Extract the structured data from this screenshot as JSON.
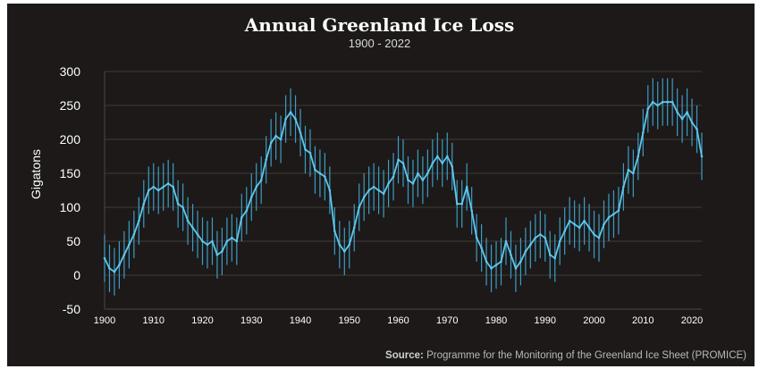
{
  "title": "Annual Greenland Ice Loss",
  "subtitle": "1900 - 2022",
  "source_label": "Source:",
  "source_text": "Programme for the Monitoring of the Greenland Ice Sheet (PROMICE)",
  "colors": {
    "background": "#1c1918",
    "line": "#5ec8ee",
    "error_bar": "#3e9cc4",
    "text": "#ffffff",
    "grid": "#4a4644"
  },
  "chart_data": {
    "type": "line",
    "title": "Annual Greenland Ice Loss",
    "subtitle": "1900 - 2022",
    "ylabel": "Gigatons",
    "xlabel": "",
    "xlim": [
      1900,
      2022
    ],
    "ylim": [
      -50,
      300
    ],
    "yticks": [
      300,
      250,
      200,
      150,
      100,
      50,
      0,
      -50
    ],
    "xticks": [
      1900,
      1910,
      1920,
      1930,
      1940,
      1950,
      1960,
      1970,
      1980,
      1990,
      2000,
      2010,
      2020
    ],
    "grid": true,
    "error_bar_halfwidth": 35,
    "series": [
      {
        "x": [
          1900,
          1901,
          1902,
          1903,
          1904,
          1905,
          1906,
          1907,
          1908,
          1909,
          1910,
          1911,
          1912,
          1913,
          1914,
          1915,
          1916,
          1917,
          1918,
          1919,
          1920,
          1921,
          1922,
          1923,
          1924,
          1925,
          1926,
          1927,
          1928,
          1929,
          1930,
          1931,
          1932,
          1933,
          1934,
          1935,
          1936,
          1937,
          1938,
          1939,
          1940,
          1941,
          1942,
          1943,
          1944,
          1945,
          1946,
          1947,
          1948,
          1949,
          1950,
          1951,
          1952,
          1953,
          1954,
          1955,
          1956,
          1957,
          1958,
          1959,
          1960,
          1961,
          1962,
          1963,
          1964,
          1965,
          1966,
          1967,
          1968,
          1969,
          1970,
          1971,
          1972,
          1973,
          1974,
          1975,
          1976,
          1977,
          1978,
          1979,
          1980,
          1981,
          1982,
          1983,
          1984,
          1985,
          1986,
          1987,
          1988,
          1989,
          1990,
          1991,
          1992,
          1993,
          1994,
          1995,
          1996,
          1997,
          1998,
          1999,
          2000,
          2001,
          2002,
          2003,
          2004,
          2005,
          2006,
          2007,
          2008,
          2009,
          2010,
          2011,
          2012,
          2013,
          2014,
          2015,
          2016,
          2017,
          2018,
          2019,
          2020,
          2021,
          2022
        ],
        "y": [
          25,
          10,
          5,
          15,
          30,
          45,
          60,
          80,
          105,
          125,
          130,
          125,
          130,
          135,
          130,
          105,
          100,
          80,
          70,
          60,
          50,
          45,
          50,
          30,
          35,
          50,
          55,
          50,
          85,
          95,
          115,
          130,
          140,
          170,
          195,
          205,
          200,
          230,
          240,
          230,
          210,
          185,
          180,
          155,
          150,
          145,
          125,
          65,
          45,
          35,
          45,
          70,
          100,
          115,
          125,
          130,
          125,
          120,
          135,
          145,
          170,
          165,
          140,
          135,
          150,
          140,
          150,
          165,
          175,
          165,
          175,
          160,
          105,
          105,
          130,
          95,
          55,
          40,
          20,
          10,
          15,
          20,
          50,
          30,
          10,
          20,
          35,
          45,
          55,
          60,
          55,
          30,
          25,
          50,
          65,
          80,
          75,
          70,
          80,
          70,
          60,
          55,
          75,
          85,
          90,
          95,
          130,
          155,
          150,
          175,
          210,
          245,
          255,
          250,
          255,
          255,
          255,
          240,
          230,
          240,
          225,
          215,
          175
        ]
      }
    ]
  }
}
